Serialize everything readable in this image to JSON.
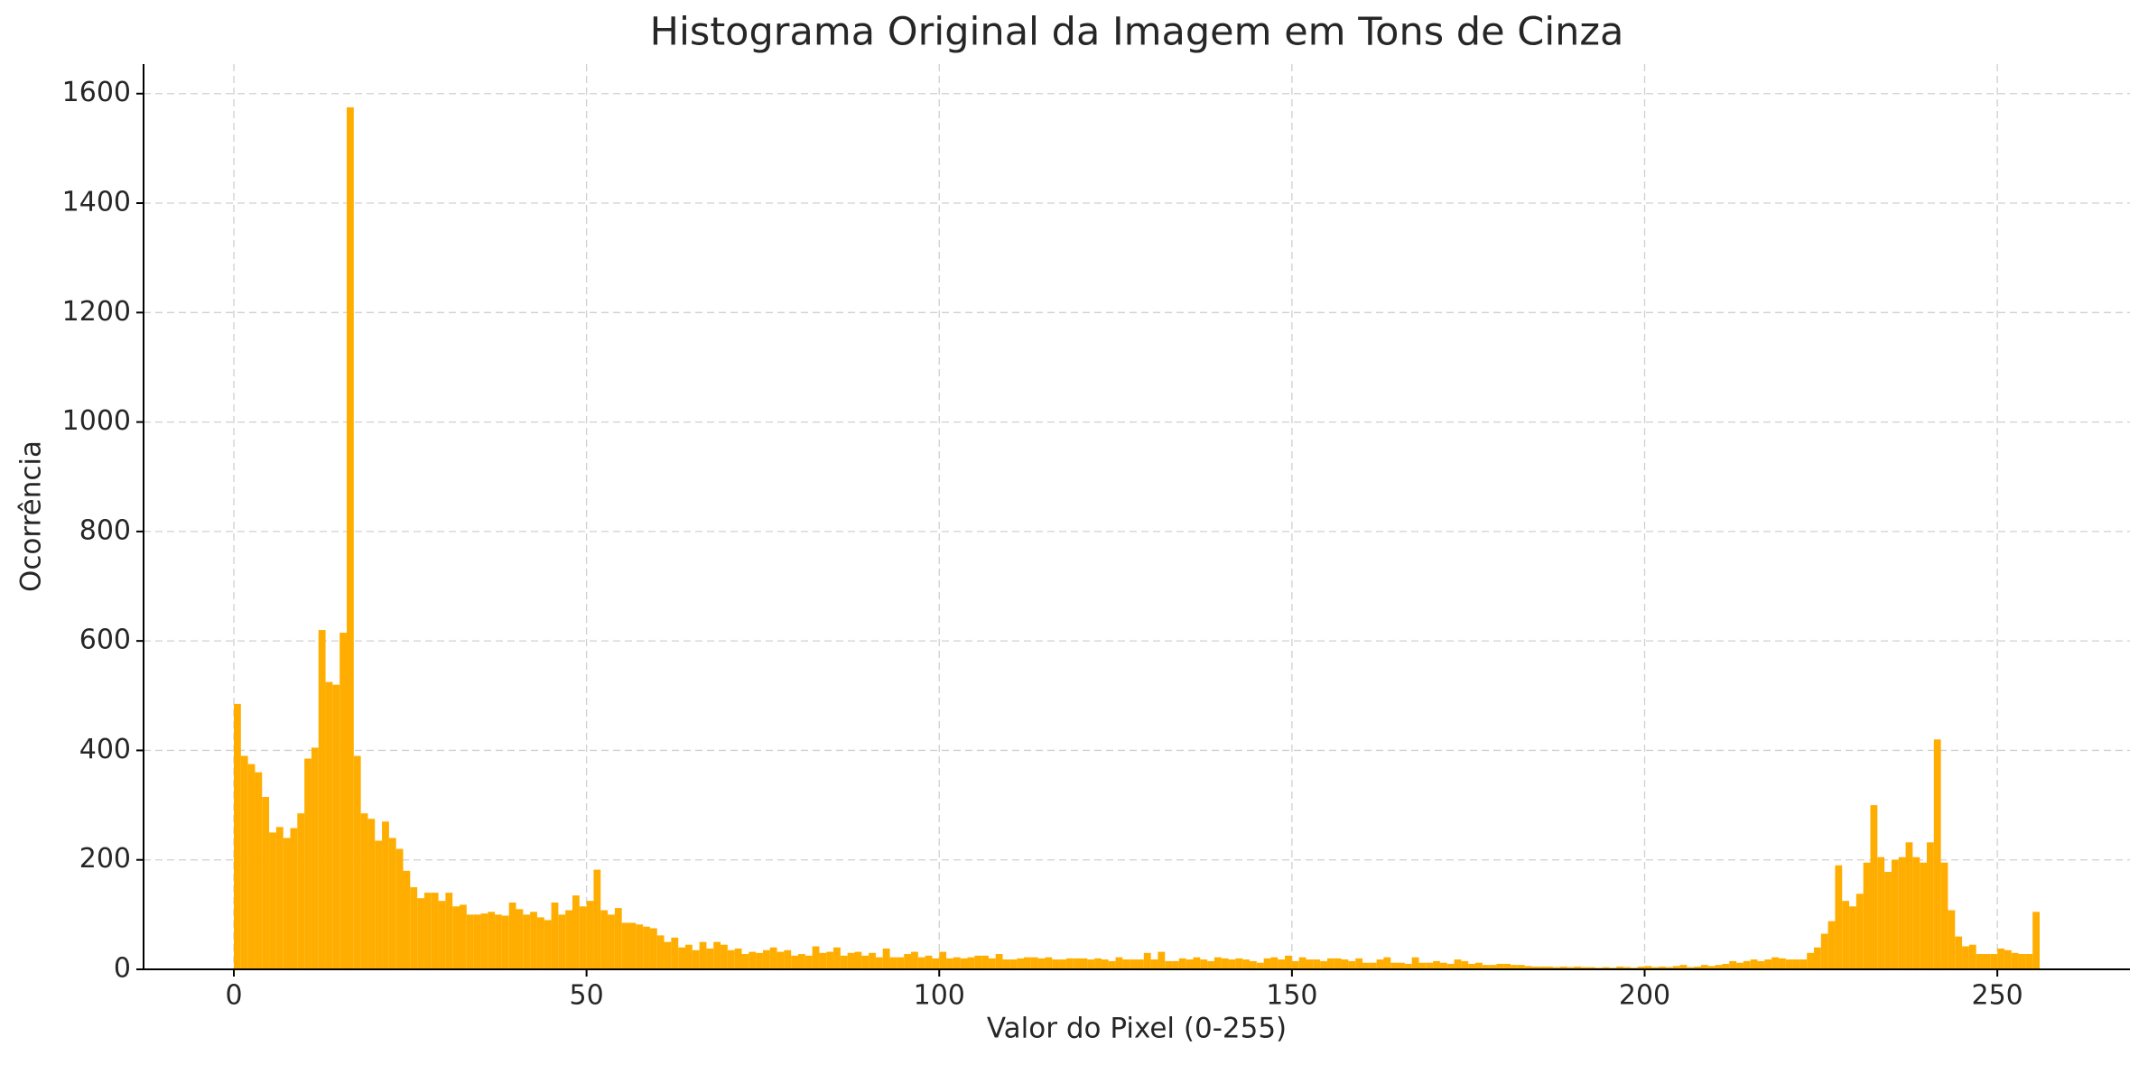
{
  "chart_data": {
    "type": "histogram",
    "title": "Histograma Original da Imagem em Tons de Cinza",
    "xlabel": "Valor do Pixel (0-255)",
    "ylabel": "Ocorrência",
    "color": "#ffae00",
    "bins": [
      0,
      1,
      2,
      3,
      4,
      5,
      6,
      7,
      8,
      9,
      10,
      11,
      12,
      13,
      14,
      15,
      16,
      17,
      18,
      19,
      20,
      21,
      22,
      23,
      24,
      25,
      26,
      27,
      28,
      29,
      30,
      31,
      32,
      33,
      34,
      35,
      36,
      37,
      38,
      39,
      40,
      41,
      42,
      43,
      44,
      45,
      46,
      47,
      48,
      49,
      50,
      51,
      52,
      53,
      54,
      55,
      56,
      57,
      58,
      59,
      60,
      61,
      62,
      63,
      64,
      65,
      66,
      67,
      68,
      69,
      70,
      71,
      72,
      73,
      74,
      75,
      76,
      77,
      78,
      79,
      80,
      81,
      82,
      83,
      84,
      85,
      86,
      87,
      88,
      89,
      90,
      91,
      92,
      93,
      94,
      95,
      96,
      97,
      98,
      99,
      100,
      101,
      102,
      103,
      104,
      105,
      106,
      107,
      108,
      109,
      110,
      111,
      112,
      113,
      114,
      115,
      116,
      117,
      118,
      119,
      120,
      121,
      122,
      123,
      124,
      125,
      126,
      127,
      128,
      129,
      130,
      131,
      132,
      133,
      134,
      135,
      136,
      137,
      138,
      139,
      140,
      141,
      142,
      143,
      144,
      145,
      146,
      147,
      148,
      149,
      150,
      151,
      152,
      153,
      154,
      155,
      156,
      157,
      158,
      159,
      160,
      161,
      162,
      163,
      164,
      165,
      166,
      167,
      168,
      169,
      170,
      171,
      172,
      173,
      174,
      175,
      176,
      177,
      178,
      179,
      180,
      181,
      182,
      183,
      184,
      185,
      186,
      187,
      188,
      189,
      190,
      191,
      192,
      193,
      194,
      195,
      196,
      197,
      198,
      199,
      200,
      201,
      202,
      203,
      204,
      205,
      206,
      207,
      208,
      209,
      210,
      211,
      212,
      213,
      214,
      215,
      216,
      217,
      218,
      219,
      220,
      221,
      222,
      223,
      224,
      225,
      226,
      227,
      228,
      229,
      230,
      231,
      232,
      233,
      234,
      235,
      236,
      237,
      238,
      239,
      240,
      241,
      242,
      243,
      244,
      245,
      246,
      247,
      248,
      249,
      250,
      251,
      252,
      253,
      254,
      255,
      256
    ],
    "values": [
      485,
      390,
      375,
      360,
      315,
      250,
      260,
      240,
      258,
      285,
      385,
      405,
      620,
      525,
      520,
      615,
      1575,
      390,
      285,
      275,
      235,
      270,
      240,
      220,
      180,
      150,
      130,
      140,
      140,
      125,
      140,
      115,
      118,
      100,
      100,
      102,
      105,
      100,
      98,
      122,
      110,
      100,
      105,
      95,
      90,
      122,
      100,
      108,
      135,
      115,
      125,
      182,
      108,
      100,
      112,
      85,
      85,
      82,
      78,
      75,
      62,
      50,
      58,
      40,
      45,
      35,
      50,
      38,
      50,
      45,
      35,
      38,
      28,
      32,
      30,
      35,
      40,
      32,
      35,
      25,
      28,
      25,
      42,
      30,
      32,
      40,
      25,
      30,
      32,
      25,
      30,
      22,
      38,
      22,
      22,
      28,
      32,
      22,
      25,
      20,
      32,
      20,
      22,
      20,
      22,
      25,
      25,
      20,
      28,
      18,
      18,
      20,
      22,
      22,
      20,
      22,
      18,
      18,
      20,
      20,
      20,
      18,
      20,
      18,
      15,
      22,
      18,
      18,
      18,
      30,
      18,
      32,
      15,
      15,
      20,
      18,
      22,
      18,
      15,
      22,
      20,
      18,
      20,
      18,
      15,
      12,
      20,
      22,
      18,
      25,
      15,
      22,
      18,
      18,
      15,
      20,
      20,
      18,
      15,
      20,
      12,
      12,
      18,
      22,
      12,
      12,
      10,
      22,
      12,
      12,
      15,
      12,
      10,
      18,
      15,
      10,
      12,
      8,
      8,
      10,
      10,
      8,
      8,
      6,
      5,
      5,
      5,
      4,
      5,
      4,
      5,
      4,
      4,
      3,
      4,
      3,
      5,
      4,
      3,
      5,
      6,
      4,
      5,
      4,
      6,
      8,
      4,
      5,
      8,
      6,
      8,
      10,
      15,
      12,
      15,
      18,
      15,
      18,
      22,
      20,
      18,
      18,
      18,
      30,
      40,
      65,
      88,
      190,
      125,
      115,
      138,
      195,
      300,
      205,
      178,
      200,
      205,
      232,
      205,
      195,
      232,
      420,
      195,
      108,
      60,
      42,
      45,
      28,
      28,
      28,
      38,
      35,
      30,
      28,
      28,
      105
    ],
    "xlim": [
      -12.8,
      268.8
    ],
    "ylim": [
      0,
      1654
    ],
    "xticks": [
      0,
      50,
      100,
      150,
      200,
      250
    ],
    "yticks": [
      0,
      200,
      400,
      600,
      800,
      1000,
      1200,
      1400,
      1600
    ],
    "grid": true
  }
}
